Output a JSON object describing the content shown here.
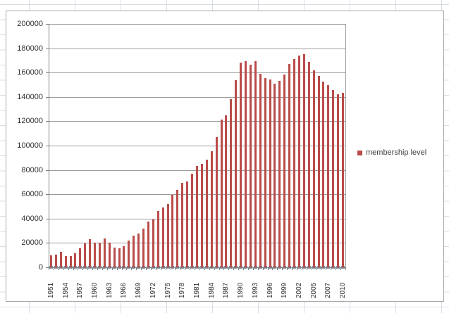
{
  "chart_data": {
    "type": "bar",
    "title": "",
    "xlabel": "",
    "ylabel": "",
    "ylim": [
      0,
      200000
    ],
    "ytick_interval": 20000,
    "ytick_labels": [
      "200000",
      "180000",
      "160000",
      "140000",
      "120000",
      "100000",
      "80000",
      "60000",
      "40000",
      "20000",
      "0"
    ],
    "x_label_every": 3,
    "xtick_labels_shown": [
      "1951",
      "1954",
      "1957",
      "1960",
      "1963",
      "1966",
      "1969",
      "1972",
      "1975",
      "1978",
      "1981",
      "1984",
      "1987",
      "1990",
      "1993",
      "1996",
      "1999",
      "2002",
      "2005",
      "2007",
      "2010"
    ],
    "grid": "horizontal",
    "legend_position": "right",
    "categories": [
      "1951",
      "1952",
      "1953",
      "1954",
      "1955",
      "1956",
      "1957",
      "1958",
      "1959",
      "1960",
      "1961",
      "1962",
      "1963",
      "1964",
      "1965",
      "1966",
      "1967",
      "1968",
      "1969",
      "1970",
      "1971",
      "1972",
      "1973",
      "1974",
      "1975",
      "1976",
      "1977",
      "1978",
      "1979",
      "1980",
      "1981",
      "1982",
      "1983",
      "1984",
      "1985",
      "1986",
      "1987",
      "1988",
      "1989",
      "1990",
      "1991",
      "1992",
      "1993",
      "1994",
      "1995",
      "1996",
      "1997",
      "1998",
      "1999",
      "2000",
      "2001",
      "2002",
      "2003",
      "2004",
      "2005",
      "2006",
      "2006",
      "2007",
      "2008",
      "2009",
      "2010"
    ],
    "series": [
      {
        "name": "membership level",
        "color": "#b94c4a",
        "base_marker_color": "#8494a6",
        "values": [
          10000,
          10500,
          13000,
          9000,
          9500,
          11500,
          15500,
          19500,
          23000,
          20000,
          20000,
          24000,
          20500,
          16000,
          15500,
          17500,
          22000,
          26000,
          27500,
          32000,
          37500,
          39500,
          46500,
          49000,
          52000,
          59500,
          63500,
          69500,
          70500,
          77000,
          83000,
          85000,
          88500,
          95500,
          107000,
          121500,
          125000,
          138000,
          154000,
          168500,
          169500,
          166500,
          169500,
          159000,
          155500,
          154500,
          151000,
          153000,
          158500,
          167000,
          171000,
          174000,
          175000,
          169000,
          162000,
          157500,
          152500,
          150000,
          145500,
          142500,
          143500
        ]
      }
    ]
  },
  "legend": {
    "entry_label": "membership level"
  }
}
